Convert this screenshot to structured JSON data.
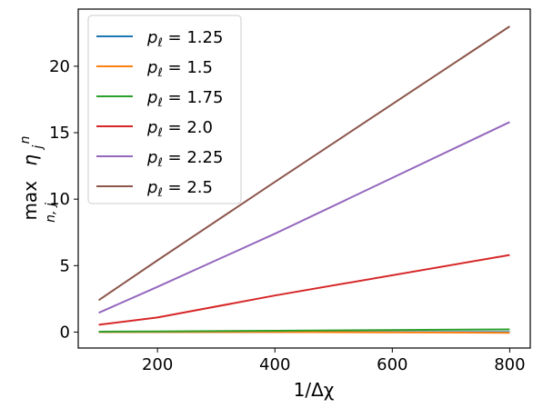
{
  "chart_data": {
    "type": "line",
    "title": "",
    "xlabel": "1/Δχ",
    "ylabel": "max η",
    "xlim": [
      65,
      835
    ],
    "ylim": [
      -1.2,
      24.3
    ],
    "xticks": [
      200,
      400,
      600,
      800
    ],
    "yticks": [
      0,
      5,
      10,
      15,
      20
    ],
    "grid": false,
    "legend_position": "top-left",
    "x": [
      100,
      200,
      400,
      800
    ],
    "series": [
      {
        "name": "p_ℓ = 1.25",
        "legend_value": "1.25",
        "color": "#1f77b4",
        "values": [
          0.0,
          0.0,
          0.0,
          0.0
        ]
      },
      {
        "name": "p_ℓ = 1.5",
        "legend_value": "1.5",
        "color": "#ff7f0e",
        "values": [
          0.0,
          0.0,
          0.0,
          -0.05
        ]
      },
      {
        "name": "p_ℓ = 1.75",
        "legend_value": "1.75",
        "color": "#2ca02c",
        "values": [
          0.03,
          0.05,
          0.1,
          0.2
        ]
      },
      {
        "name": "p_ℓ = 2.0",
        "legend_value": "2.0",
        "color": "#d62728",
        "values": [
          0.55,
          1.1,
          2.75,
          5.8
        ]
      },
      {
        "name": "p_ℓ = 2.25",
        "legend_value": "2.25",
        "color": "#9467bd",
        "values": [
          1.45,
          3.4,
          7.4,
          15.8
        ]
      },
      {
        "name": "p_ℓ = 2.5",
        "legend_value": "2.5",
        "color": "#8c564b",
        "values": [
          2.4,
          5.4,
          11.3,
          23.0
        ]
      }
    ]
  }
}
